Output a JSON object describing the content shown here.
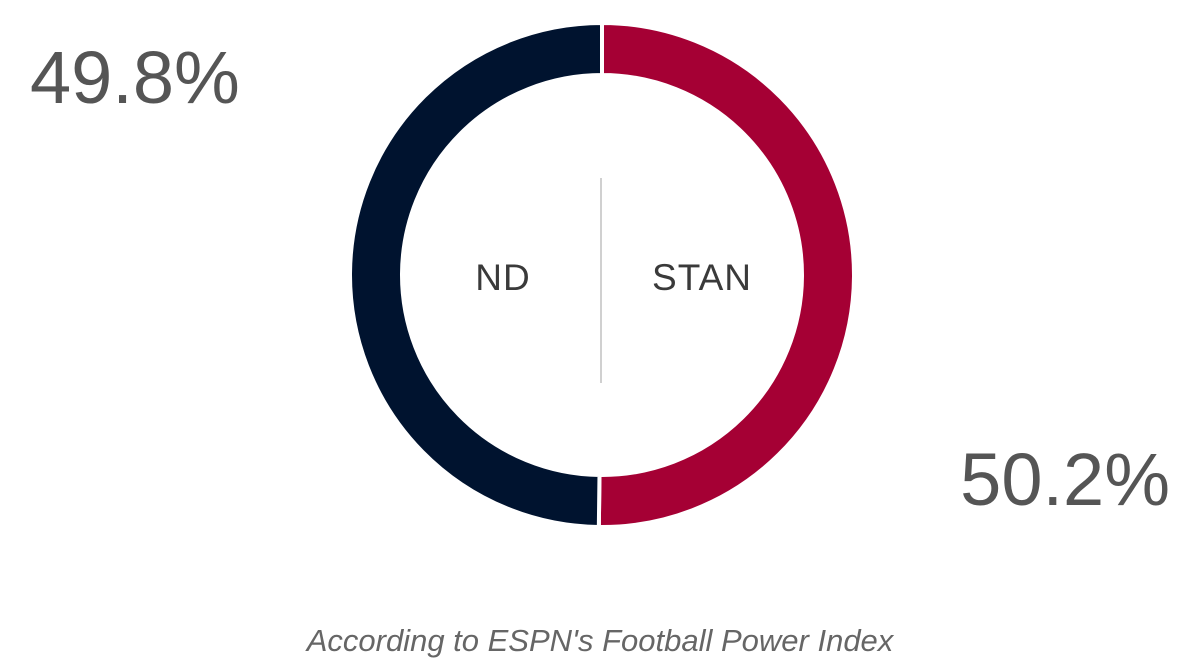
{
  "chart_data": {
    "type": "donut",
    "categories": [
      "ND",
      "STAN"
    ],
    "values": [
      49.8,
      50.2
    ],
    "value_labels": [
      "49.8%",
      "50.2%"
    ],
    "colors": [
      "#00132f",
      "#a50034"
    ],
    "caption": "According to ESPN's Football Power Index"
  }
}
